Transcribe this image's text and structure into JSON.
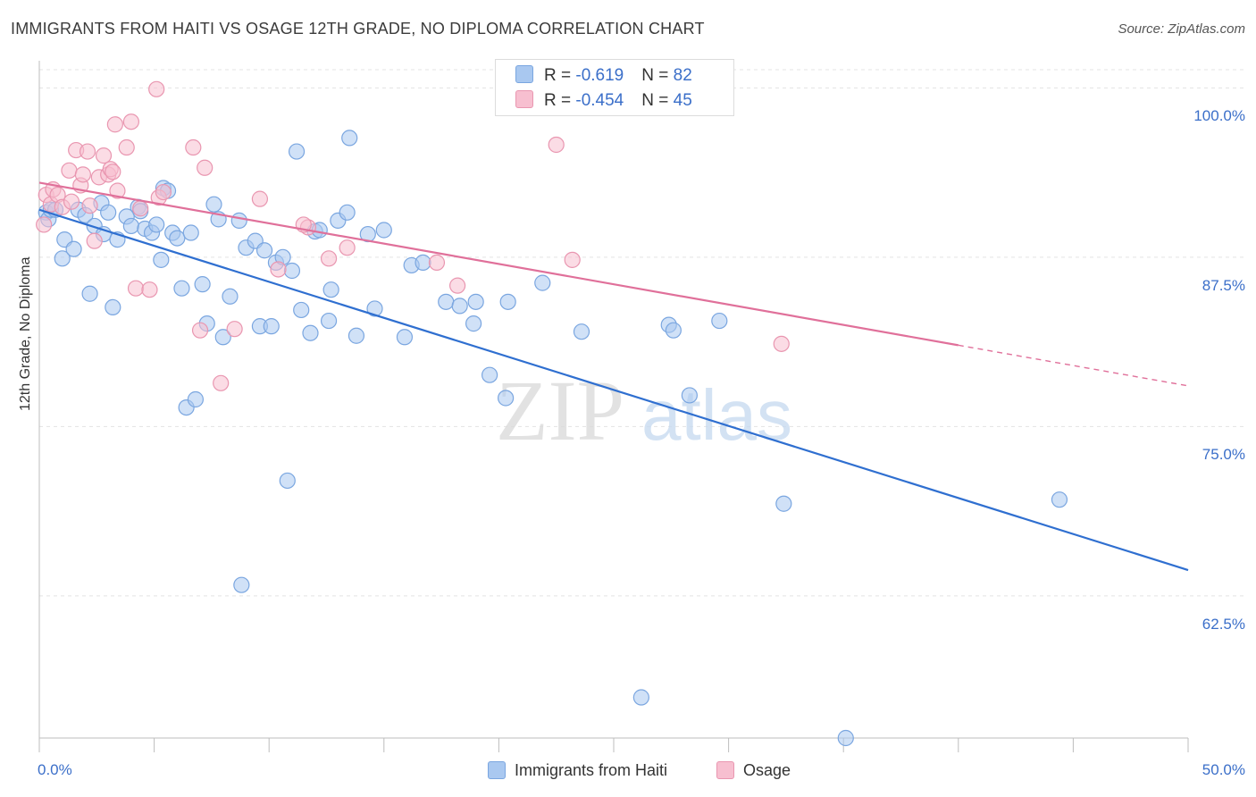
{
  "header": {
    "title": "IMMIGRANTS FROM HAITI VS OSAGE 12TH GRADE, NO DIPLOMA CORRELATION CHART",
    "source": "Source: ZipAtlas.com"
  },
  "watermark": {
    "zip": "ZIP",
    "atlas": "atlas"
  },
  "legend": {
    "rows": [
      {
        "r_label": "R = ",
        "r_value": "-0.619",
        "n_label": "N = ",
        "n_value": "82",
        "color": "#a9c8f0",
        "border": "#7aa6e0"
      },
      {
        "r_label": "R = ",
        "r_value": "-0.454",
        "n_label": "N = ",
        "n_value": "45",
        "color": "#f7bfd0",
        "border": "#e996b0"
      }
    ]
  },
  "chart_data": {
    "type": "scatter",
    "title": "IMMIGRANTS FROM HAITI VS OSAGE 12TH GRADE, NO DIPLOMA CORRELATION CHART",
    "xlabel": "",
    "ylabel": "12th Grade, No Diploma",
    "xlim": [
      0,
      50
    ],
    "ylim": [
      52,
      102
    ],
    "x_tick_labels": [
      "0.0%",
      "50.0%"
    ],
    "y_ticks": [
      62.5,
      75.0,
      87.5,
      100.0
    ],
    "y_tick_labels": [
      "62.5%",
      "75.0%",
      "87.5%",
      "100.0%"
    ],
    "grid": true,
    "legend_position": "top-center",
    "series": [
      {
        "name": "Immigrants from Haiti",
        "color": "#7aa6e0",
        "fill": "#a9c8f0",
        "line_color": "#2f6fd0",
        "trend": {
          "x0": 0,
          "y0": 91.0,
          "x1": 50,
          "y1": 64.4
        },
        "points": [
          [
            0.3,
            90.8
          ],
          [
            0.4,
            90.3
          ],
          [
            0.5,
            91.0
          ],
          [
            0.7,
            91.0
          ],
          [
            1.0,
            87.4
          ],
          [
            1.1,
            88.8
          ],
          [
            1.5,
            88.1
          ],
          [
            1.7,
            91.0
          ],
          [
            2.0,
            90.6
          ],
          [
            2.2,
            84.8
          ],
          [
            2.4,
            89.8
          ],
          [
            2.7,
            91.5
          ],
          [
            2.8,
            89.2
          ],
          [
            3.0,
            90.8
          ],
          [
            3.2,
            83.8
          ],
          [
            3.4,
            88.8
          ],
          [
            3.8,
            90.5
          ],
          [
            4.0,
            89.8
          ],
          [
            4.3,
            91.2
          ],
          [
            4.4,
            90.9
          ],
          [
            4.6,
            89.6
          ],
          [
            4.9,
            89.3
          ],
          [
            5.1,
            89.9
          ],
          [
            5.3,
            87.3
          ],
          [
            5.4,
            92.6
          ],
          [
            5.6,
            92.4
          ],
          [
            5.8,
            89.3
          ],
          [
            6.0,
            88.9
          ],
          [
            6.2,
            85.2
          ],
          [
            6.4,
            76.4
          ],
          [
            6.6,
            89.3
          ],
          [
            6.8,
            77.0
          ],
          [
            7.1,
            85.5
          ],
          [
            7.3,
            82.6
          ],
          [
            7.6,
            91.4
          ],
          [
            7.8,
            90.3
          ],
          [
            8.0,
            81.6
          ],
          [
            8.3,
            84.6
          ],
          [
            8.7,
            90.2
          ],
          [
            8.8,
            63.3
          ],
          [
            9.0,
            88.2
          ],
          [
            9.4,
            88.7
          ],
          [
            9.6,
            82.4
          ],
          [
            9.8,
            88.0
          ],
          [
            10.1,
            82.4
          ],
          [
            10.3,
            87.1
          ],
          [
            10.6,
            87.5
          ],
          [
            10.8,
            71.0
          ],
          [
            11.0,
            86.5
          ],
          [
            11.2,
            95.3
          ],
          [
            11.4,
            83.6
          ],
          [
            11.8,
            81.9
          ],
          [
            12.0,
            89.4
          ],
          [
            12.2,
            89.5
          ],
          [
            12.6,
            82.8
          ],
          [
            12.7,
            85.1
          ],
          [
            13.0,
            90.2
          ],
          [
            13.4,
            90.8
          ],
          [
            13.5,
            96.3
          ],
          [
            13.8,
            81.7
          ],
          [
            14.3,
            89.2
          ],
          [
            14.6,
            83.7
          ],
          [
            15.0,
            89.5
          ],
          [
            15.9,
            81.6
          ],
          [
            16.2,
            86.9
          ],
          [
            16.7,
            87.1
          ],
          [
            17.7,
            84.2
          ],
          [
            18.3,
            83.9
          ],
          [
            18.9,
            82.6
          ],
          [
            19.0,
            84.2
          ],
          [
            19.6,
            78.8
          ],
          [
            20.3,
            77.1
          ],
          [
            20.4,
            84.2
          ],
          [
            21.9,
            85.6
          ],
          [
            23.6,
            82.0
          ],
          [
            26.2,
            55.0
          ],
          [
            27.4,
            82.5
          ],
          [
            27.6,
            82.1
          ],
          [
            28.3,
            77.3
          ],
          [
            29.6,
            82.8
          ],
          [
            32.4,
            69.3
          ],
          [
            35.1,
            52.0
          ],
          [
            44.4,
            69.6
          ]
        ]
      },
      {
        "name": "Osage",
        "color": "#e996b0",
        "fill": "#f7bfd0",
        "line_color": "#e0709a",
        "trend": {
          "x0": 0,
          "y0": 93.0,
          "x1": 40,
          "y1": 81.0
        },
        "trend_dashed_to": {
          "x": 50,
          "y": 78.0
        },
        "points": [
          [
            0.2,
            89.9
          ],
          [
            0.3,
            92.1
          ],
          [
            0.5,
            91.4
          ],
          [
            0.6,
            92.5
          ],
          [
            0.8,
            92.1
          ],
          [
            1.0,
            91.2
          ],
          [
            1.3,
            93.9
          ],
          [
            1.4,
            91.6
          ],
          [
            1.6,
            95.4
          ],
          [
            1.8,
            92.8
          ],
          [
            1.9,
            93.6
          ],
          [
            2.1,
            95.3
          ],
          [
            2.2,
            91.3
          ],
          [
            2.4,
            88.7
          ],
          [
            2.6,
            93.4
          ],
          [
            2.8,
            95.0
          ],
          [
            3.0,
            93.6
          ],
          [
            3.1,
            94.0
          ],
          [
            3.2,
            93.8
          ],
          [
            3.3,
            97.3
          ],
          [
            3.4,
            92.4
          ],
          [
            3.8,
            95.6
          ],
          [
            4.0,
            97.5
          ],
          [
            4.2,
            85.2
          ],
          [
            4.4,
            91.1
          ],
          [
            4.8,
            85.1
          ],
          [
            5.2,
            91.9
          ],
          [
            5.4,
            92.3
          ],
          [
            6.7,
            95.6
          ],
          [
            7.0,
            82.1
          ],
          [
            7.2,
            94.1
          ],
          [
            7.9,
            78.2
          ],
          [
            8.5,
            82.2
          ],
          [
            9.6,
            91.8
          ],
          [
            10.4,
            86.6
          ],
          [
            11.7,
            89.7
          ],
          [
            12.6,
            87.4
          ],
          [
            13.4,
            88.2
          ],
          [
            17.3,
            87.1
          ],
          [
            18.2,
            85.4
          ],
          [
            22.5,
            95.8
          ],
          [
            23.2,
            87.3
          ],
          [
            32.3,
            81.1
          ],
          [
            5.1,
            99.9
          ],
          [
            11.5,
            89.9
          ]
        ]
      }
    ]
  },
  "legend_bottom": [
    {
      "label": "Immigrants from Haiti",
      "color": "#a9c8f0",
      "border": "#7aa6e0"
    },
    {
      "label": "Osage",
      "color": "#f7bfd0",
      "border": "#e996b0"
    }
  ]
}
